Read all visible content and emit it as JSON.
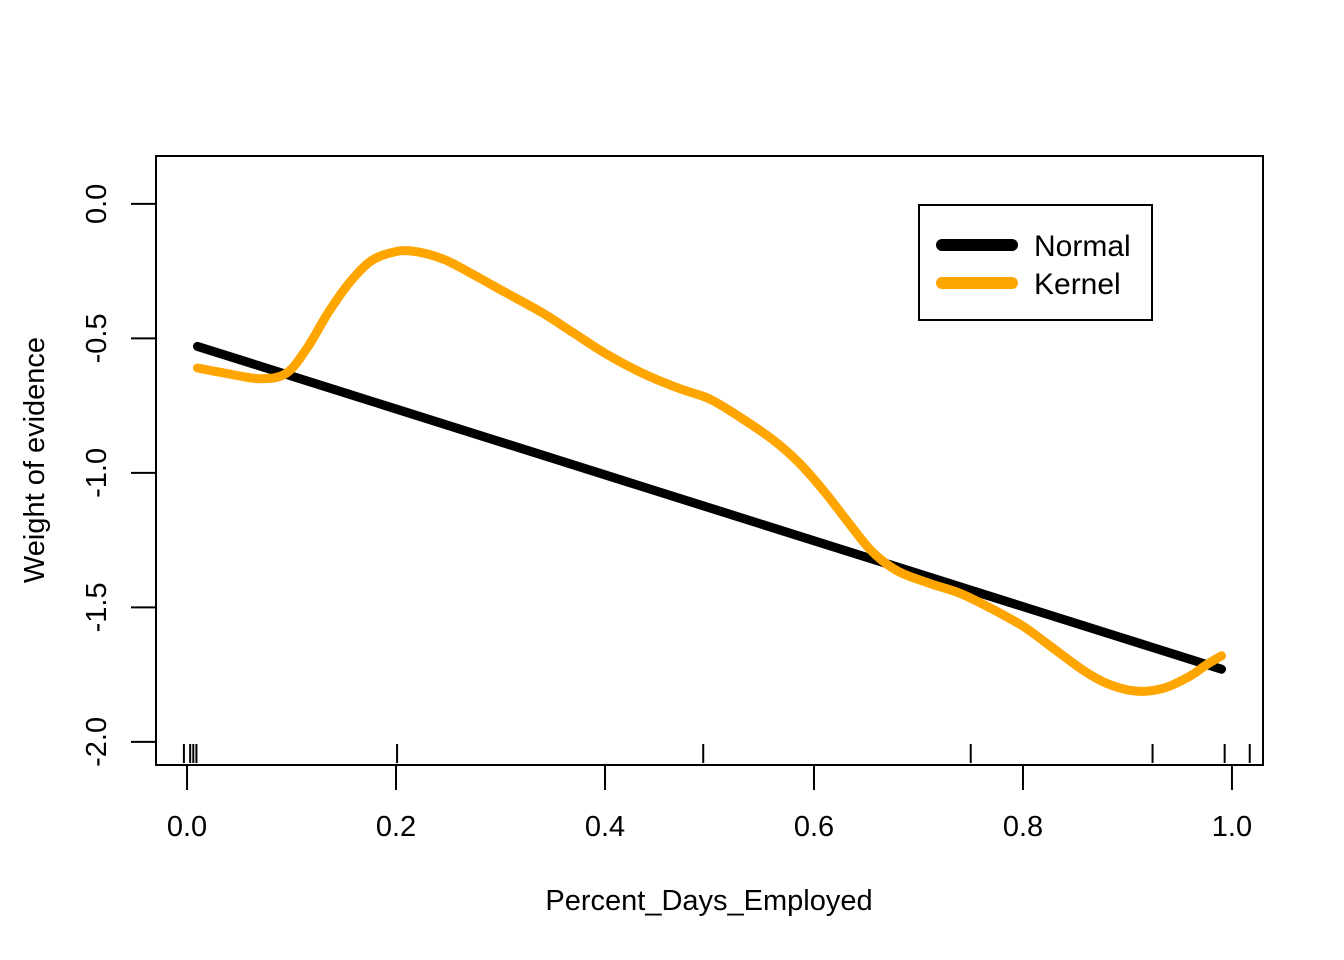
{
  "figure": {
    "background": "#ffffff",
    "frame_color": "#000000"
  },
  "chart_data": {
    "type": "line",
    "title": "",
    "xlabel": "Percent_Days_Employed",
    "ylabel": "Weight of evidence",
    "xlim": [
      -0.0297,
      1.0297
    ],
    "ylim": [
      -2.086,
      0.178
    ],
    "grid": false,
    "x_ticks": {
      "values": [
        0.0,
        0.2,
        0.4,
        0.6,
        0.8,
        1.0
      ],
      "labels": [
        "0.0",
        "0.2",
        "0.4",
        "0.6",
        "0.8",
        "1.0"
      ]
    },
    "y_ticks": {
      "values": [
        0.0,
        -0.5,
        -1.0,
        -1.5,
        -2.0
      ],
      "labels": [
        "0.0",
        "-0.5",
        "-1.0",
        "-1.5",
        "-2.0"
      ]
    },
    "legend": {
      "position": "top-right",
      "entries": [
        {
          "label": "Normal",
          "color": "#000000"
        },
        {
          "label": "Kernel",
          "color": "#FFA500"
        }
      ]
    },
    "series": [
      {
        "name": "Normal",
        "color": "#000000",
        "style": "straight",
        "points": [
          [
            0.01,
            -0.53
          ],
          [
            0.99,
            -1.73
          ]
        ]
      },
      {
        "name": "Kernel",
        "color": "#FFA500",
        "style": "smooth",
        "points": [
          [
            0.01,
            -0.61
          ],
          [
            0.04,
            -0.632
          ],
          [
            0.07,
            -0.65
          ],
          [
            0.095,
            -0.63
          ],
          [
            0.115,
            -0.535
          ],
          [
            0.135,
            -0.405
          ],
          [
            0.155,
            -0.295
          ],
          [
            0.175,
            -0.215
          ],
          [
            0.195,
            -0.182
          ],
          [
            0.215,
            -0.175
          ],
          [
            0.245,
            -0.205
          ],
          [
            0.275,
            -0.265
          ],
          [
            0.305,
            -0.33
          ],
          [
            0.34,
            -0.405
          ],
          [
            0.37,
            -0.48
          ],
          [
            0.4,
            -0.555
          ],
          [
            0.435,
            -0.628
          ],
          [
            0.47,
            -0.685
          ],
          [
            0.5,
            -0.725
          ],
          [
            0.53,
            -0.795
          ],
          [
            0.56,
            -0.875
          ],
          [
            0.585,
            -0.96
          ],
          [
            0.61,
            -1.07
          ],
          [
            0.632,
            -1.18
          ],
          [
            0.655,
            -1.29
          ],
          [
            0.68,
            -1.365
          ],
          [
            0.71,
            -1.41
          ],
          [
            0.74,
            -1.448
          ],
          [
            0.77,
            -1.505
          ],
          [
            0.8,
            -1.57
          ],
          [
            0.83,
            -1.655
          ],
          [
            0.86,
            -1.74
          ],
          [
            0.885,
            -1.79
          ],
          [
            0.91,
            -1.812
          ],
          [
            0.935,
            -1.8
          ],
          [
            0.96,
            -1.755
          ],
          [
            0.975,
            -1.715
          ],
          [
            0.99,
            -1.68
          ]
        ]
      }
    ],
    "rug_x": [
      -0.003,
      0.003,
      0.006,
      0.009,
      0.201,
      0.494,
      0.75,
      0.924,
      0.993,
      1.017
    ]
  }
}
